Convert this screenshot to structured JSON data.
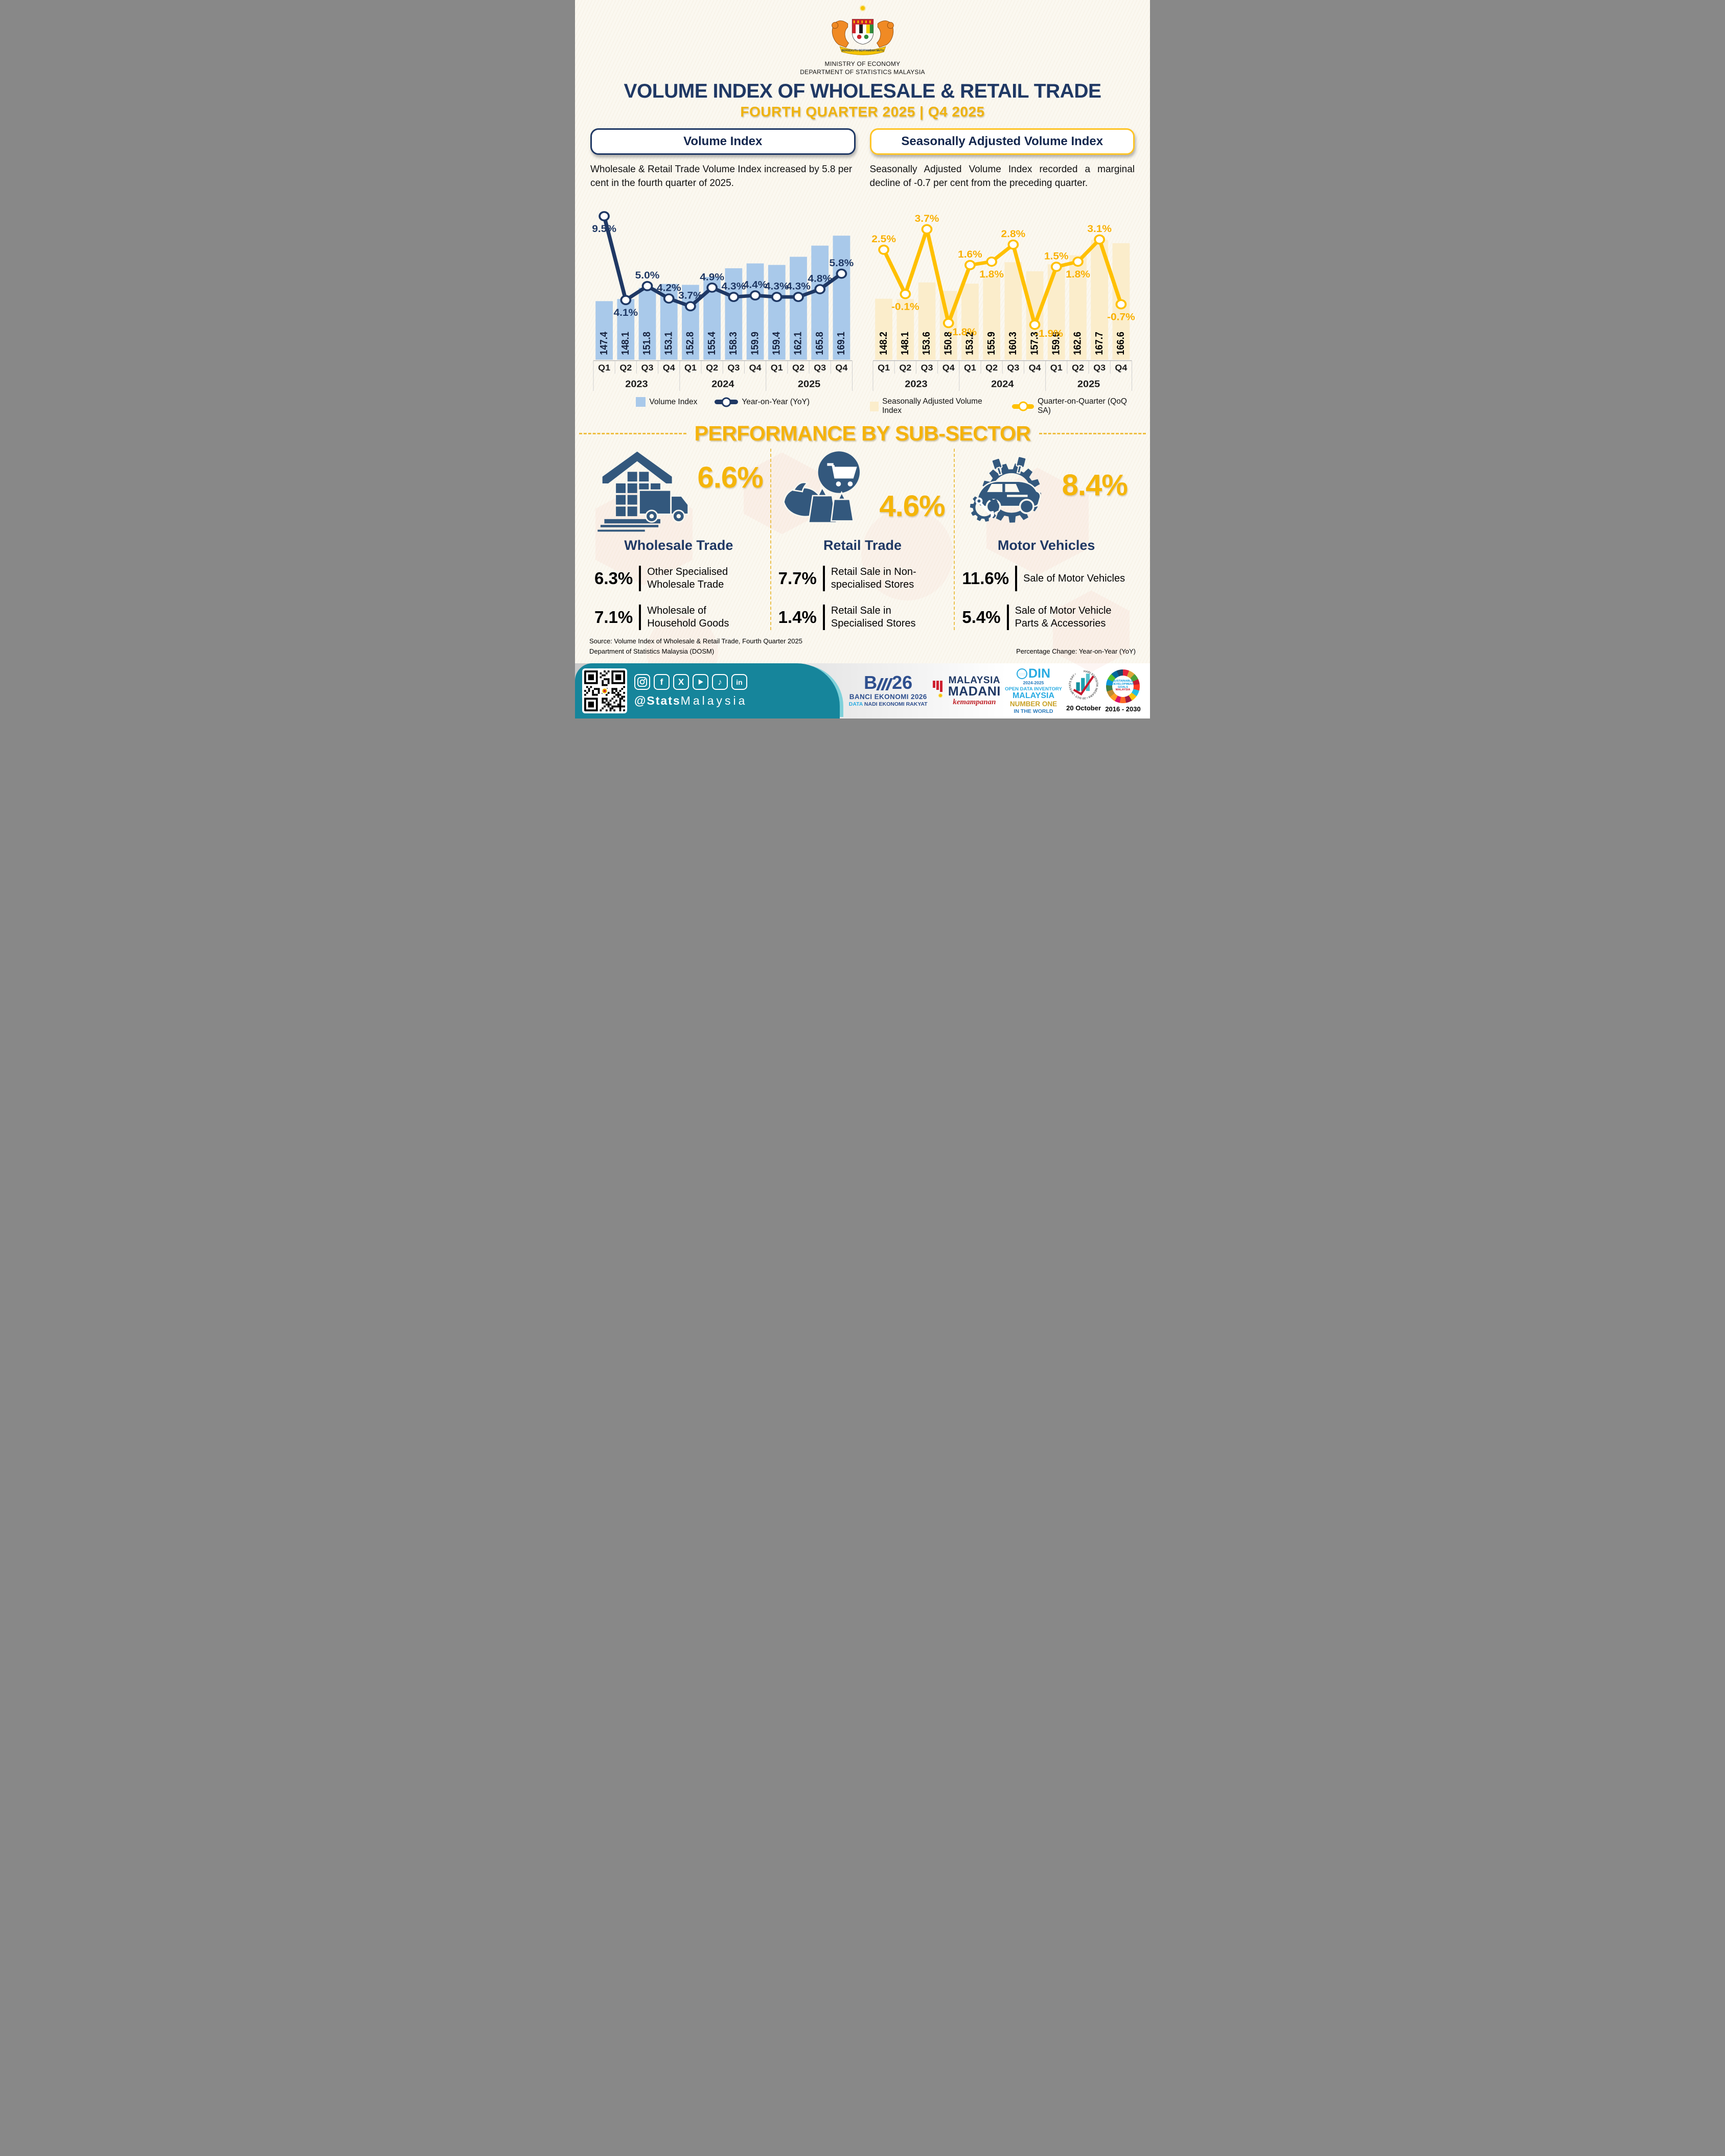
{
  "header": {
    "ministry": "MINISTRY OF ECONOMY",
    "department": "DEPARTMENT OF STATISTICS MALAYSIA",
    "crest_motto": "BERSEKUTU BERTAMBAH MUTU",
    "title": "VOLUME INDEX OF WHOLESALE & RETAIL TRADE",
    "subtitle": "FOURTH QUARTER 2025 | Q4 2025"
  },
  "volume_index_panel": {
    "heading": "Volume Index",
    "description": "Wholesale & Retail Trade Volume Index increased by 5.8 per cent in the fourth quarter of 2025.",
    "legend": [
      "Volume Index",
      "Year-on-Year (YoY)"
    ]
  },
  "sa_panel": {
    "heading": "Seasonally Adjusted Volume Index",
    "description": "Seasonally Adjusted Volume Index recorded a marginal decline of -0.7 per cent from the preceding quarter.",
    "legend": [
      "Seasonally Adjusted Volume Index",
      "Quarter-on-Quarter (QoQ SA)"
    ]
  },
  "chart_data": [
    {
      "type": "bar",
      "title": "Volume Index",
      "categories": [
        "Q1",
        "Q2",
        "Q3",
        "Q4",
        "Q1",
        "Q2",
        "Q3",
        "Q4",
        "Q1",
        "Q2",
        "Q3",
        "Q4"
      ],
      "year_groups": [
        "2023",
        "2024",
        "2025"
      ],
      "series": [
        {
          "name": "Volume Index",
          "type": "bar",
          "values": [
            147.4,
            148.1,
            151.8,
            153.1,
            152.8,
            155.4,
            158.3,
            159.9,
            159.4,
            162.1,
            165.8,
            169.1
          ]
        },
        {
          "name": "Year-on-Year (YoY)",
          "type": "line",
          "unit": "%",
          "values": [
            9.5,
            4.1,
            5.0,
            4.2,
            3.7,
            4.9,
            4.3,
            4.4,
            4.3,
            4.3,
            4.8,
            5.8
          ]
        }
      ],
      "colors": {
        "bar": "#A9C9EA",
        "line": "#1F3864"
      },
      "legend_position": "bottom"
    },
    {
      "type": "bar",
      "title": "Seasonally Adjusted Volume Index",
      "categories": [
        "Q1",
        "Q2",
        "Q3",
        "Q4",
        "Q1",
        "Q2",
        "Q3",
        "Q4",
        "Q1",
        "Q2",
        "Q3",
        "Q4"
      ],
      "year_groups": [
        "2023",
        "2024",
        "2025"
      ],
      "series": [
        {
          "name": "Seasonally Adjusted Volume Index",
          "type": "bar",
          "values": [
            148.2,
            148.1,
            153.6,
            150.8,
            153.2,
            155.9,
            160.3,
            157.3,
            159.6,
            162.6,
            167.7,
            166.6
          ]
        },
        {
          "name": "Quarter-on-Quarter (QoQ SA)",
          "type": "line",
          "unit": "%",
          "values": [
            2.5,
            -0.1,
            3.7,
            -1.8,
            1.6,
            1.8,
            2.8,
            -1.9,
            1.5,
            1.8,
            3.1,
            -0.7
          ]
        }
      ],
      "colors": {
        "bar": "#FBEDCB",
        "line": "#FFC000"
      },
      "legend_position": "bottom"
    }
  ],
  "performance": {
    "title": "PERFORMANCE BY SUB-SECTOR",
    "sectors": [
      {
        "name": "Wholesale Trade",
        "value": "6.6%",
        "icon": "warehouse-truck-icon",
        "items": [
          {
            "value": "6.3%",
            "label": "Other Specialised Wholesale Trade"
          },
          {
            "value": "7.1%",
            "label": "Wholesale of Household Goods"
          }
        ]
      },
      {
        "name": "Retail Trade",
        "value": "4.6%",
        "icon": "shopping-bags-cart-icon",
        "items": [
          {
            "value": "7.7%",
            "label": "Retail Sale in Non-specialised Stores"
          },
          {
            "value": "1.4%",
            "label": "Retail Sale in Specialised Stores"
          }
        ]
      },
      {
        "name": "Motor Vehicles",
        "value": "8.4%",
        "icon": "car-gear-piston-icon",
        "items": [
          {
            "value": "11.6%",
            "label": "Sale of Motor Vehicles"
          },
          {
            "value": "5.4%",
            "label": "Sale of Motor Vehicle Parts & Accessories"
          }
        ]
      }
    ]
  },
  "source": {
    "line1": "Source: Volume Index of Wholesale & Retail Trade, Fourth Quarter 2025",
    "line2": "Department of Statistics Malaysia (DOSM)",
    "note": "Percentage Change: Year-on-Year (YoY)"
  },
  "footer": {
    "handle_bold": "@Stats",
    "handle_light": "Malaysia",
    "social": [
      "instagram",
      "facebook",
      "x",
      "youtube",
      "tiktok",
      "linkedin"
    ],
    "banci": {
      "mark_left": "B",
      "mark_right": "26",
      "line1": "BANCI EKONOMI 2026",
      "tag_blue": "DATA",
      "tag_rest": "NADI EKONOMI RAKYAT"
    },
    "madani": {
      "top": "MALAYSIA",
      "bottom": "MADANI",
      "script": "kemampanan"
    },
    "odin": {
      "mark": "DIN",
      "years": "2024-2025",
      "line1": "OPEN DATA INVENTORY",
      "line2": "MALAYSIA",
      "line3": "NUMBER ONE",
      "line4": "IN THE WORLD"
    },
    "statsday": {
      "ring": "HARI STATISTIK NEGARA • 20 OCT • MYSTATS DAY •",
      "caption": "20 October"
    },
    "sdg": {
      "c1": "SUSTAINABLE",
      "c2": "DEVELOPMENT",
      "c3": "GOALS",
      "c4": "MALAYSIA",
      "caption": "2016 - 2030"
    }
  },
  "colors": {
    "navy": "#1F3864",
    "gold": "#FFC000",
    "teal": "#16859B",
    "icon_navy": "#33587D",
    "bar_blue": "#A9C9EA",
    "bar_cream": "#FBEDCB",
    "accent_gold": "#F5B30D"
  }
}
